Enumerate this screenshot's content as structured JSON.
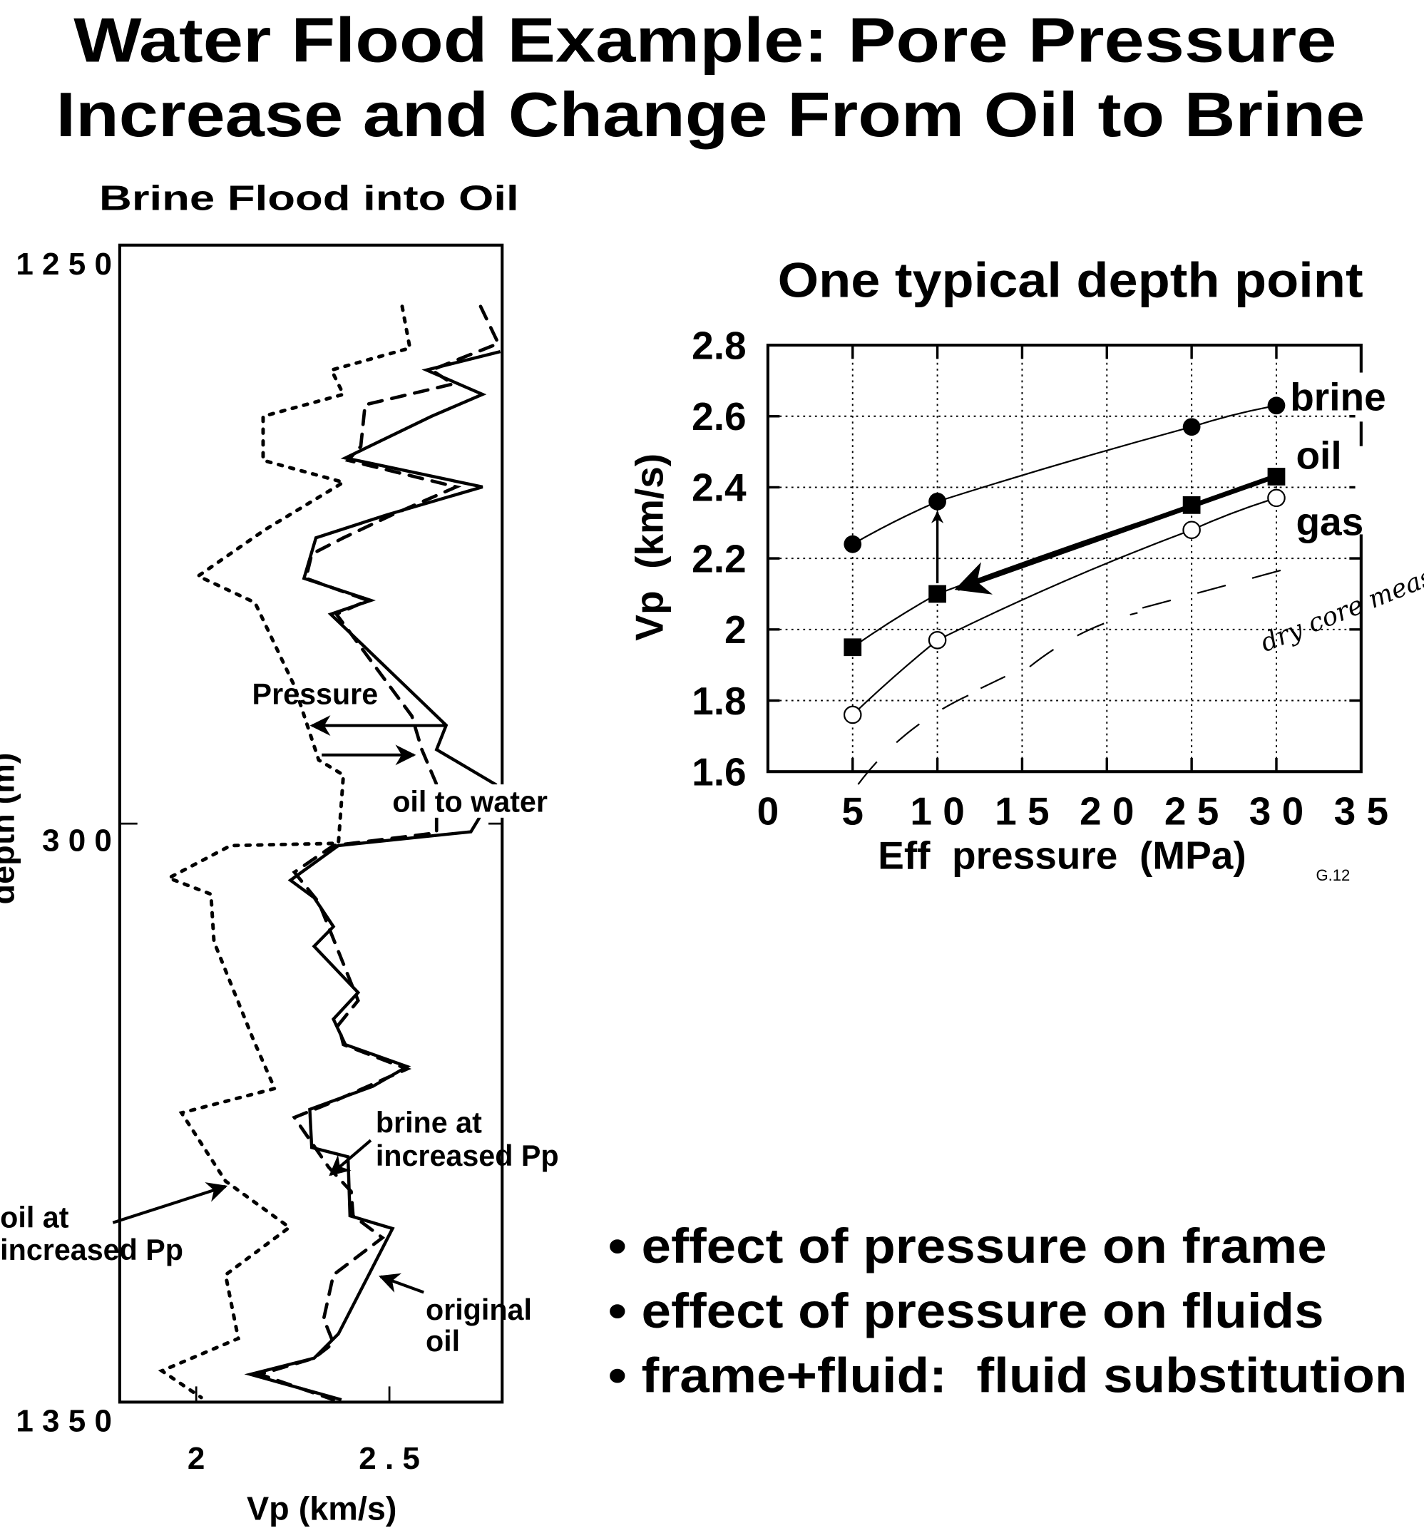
{
  "title": {
    "line1": "Water Flood Example:  Pore Pressure",
    "line2": "Increase and Change From Oil to Brine"
  },
  "left_panel": {
    "subtitle": "Brine Flood into Oil",
    "ylabel": "depth (m)",
    "xlabel": "Vp (km/s)",
    "annotations": {
      "pressure": "Pressure",
      "oil_to_water": "oil to water",
      "brine_1": "brine  at",
      "brine_2": "increased  Pp",
      "oil_1": "oil  at",
      "oil_2": "increased  Pp",
      "orig_1": "original",
      "orig_2": "oil"
    }
  },
  "right_panel": {
    "title": "One typical depth point",
    "figure_id": "G.12",
    "handwritten_note": "dry core measurement"
  },
  "bullets": [
    "• effect of pressure on frame",
    "• effect of pressure on fluids",
    "• frame+fluid:  fluid substitution"
  ],
  "chart_data": [
    {
      "type": "line",
      "title": "Brine Flood into Oil",
      "xlabel": "Vp (km/s)",
      "ylabel": "depth (m)",
      "xlim": [
        1.8,
        2.79
      ],
      "ylim": [
        1350,
        1250
      ],
      "x_ticks": [
        {
          "v": 2,
          "label": "2"
        },
        {
          "v": 2.5,
          "label": "2 . 5"
        }
      ],
      "y_ticks": [
        {
          "v": 1250,
          "label": "1 2 5 0"
        },
        {
          "v": 1300,
          "label": "3 0 0"
        },
        {
          "v": 1350,
          "label": "1 3 5 0"
        }
      ],
      "series": [
        {
          "name": "original oil",
          "style": "solid",
          "points": [
            [
              2.787,
              1259.2
            ],
            [
              2.596,
              1260.8
            ],
            [
              2.741,
              1262.9
            ],
            [
              2.609,
              1264.8
            ],
            [
              2.386,
              1268.4
            ],
            [
              2.741,
              1270.9
            ],
            [
              2.495,
              1273.3
            ],
            [
              2.31,
              1275.3
            ],
            [
              2.279,
              1278.8
            ],
            [
              2.452,
              1280.7
            ],
            [
              2.348,
              1281.9
            ],
            [
              2.647,
              1291.5
            ],
            [
              2.622,
              1293.6
            ],
            [
              2.774,
              1296.6
            ],
            [
              2.731,
              1299.6
            ],
            [
              2.711,
              1300.7
            ],
            [
              2.368,
              1301.9
            ],
            [
              2.244,
              1304.9
            ],
            [
              2.305,
              1306.4
            ],
            [
              2.355,
              1308.9
            ],
            [
              2.305,
              1310.6
            ],
            [
              2.419,
              1314.6
            ],
            [
              2.355,
              1316.9
            ],
            [
              2.386,
              1319.1
            ],
            [
              2.546,
              1321.0
            ],
            [
              2.457,
              1322.7
            ],
            [
              2.294,
              1324.7
            ],
            [
              2.299,
              1328.0
            ],
            [
              2.393,
              1328.8
            ],
            [
              2.398,
              1333.9
            ],
            [
              2.508,
              1335.0
            ],
            [
              2.368,
              1344.1
            ],
            [
              2.305,
              1346.2
            ],
            [
              2.14,
              1347.6
            ],
            [
              2.376,
              1349.8
            ]
          ]
        },
        {
          "name": "brine at increased Pp",
          "style": "dashed",
          "points": [
            [
              2.736,
              1255.3
            ],
            [
              2.782,
              1258.5
            ],
            [
              2.609,
              1260.8
            ],
            [
              2.665,
              1262.0
            ],
            [
              2.437,
              1263.8
            ],
            [
              2.426,
              1267.4
            ],
            [
              2.393,
              1268.6
            ],
            [
              2.673,
              1270.9
            ],
            [
              2.508,
              1273.3
            ],
            [
              2.381,
              1275.3
            ],
            [
              2.299,
              1276.7
            ],
            [
              2.284,
              1278.8
            ],
            [
              2.444,
              1280.7
            ],
            [
              2.363,
              1281.9
            ],
            [
              2.558,
              1290.7
            ],
            [
              2.584,
              1293.6
            ],
            [
              2.622,
              1296.6
            ],
            [
              2.622,
              1300.8
            ],
            [
              2.355,
              1301.9
            ],
            [
              2.254,
              1304.2
            ],
            [
              2.317,
              1306.8
            ],
            [
              2.419,
              1315.3
            ],
            [
              2.368,
              1317.4
            ],
            [
              2.381,
              1319.1
            ],
            [
              2.546,
              1321.2
            ],
            [
              2.343,
              1324.2
            ],
            [
              2.254,
              1325.4
            ],
            [
              2.343,
              1329.7
            ],
            [
              2.401,
              1331.8
            ],
            [
              2.406,
              1333.9
            ],
            [
              2.482,
              1335.8
            ],
            [
              2.355,
              1339.0
            ],
            [
              2.33,
              1342.8
            ],
            [
              2.355,
              1344.9
            ],
            [
              2.305,
              1346.2
            ],
            [
              2.165,
              1347.6
            ],
            [
              2.355,
              1349.8
            ]
          ]
        },
        {
          "name": "oil at increased Pp",
          "style": "dotted",
          "points": [
            [
              2.533,
              1255.3
            ],
            [
              2.553,
              1258.9
            ],
            [
              2.35,
              1260.8
            ],
            [
              2.381,
              1262.9
            ],
            [
              2.173,
              1264.8
            ],
            [
              2.173,
              1268.6
            ],
            [
              2.381,
              1270.5
            ],
            [
              2.178,
              1274.6
            ],
            [
              2.005,
              1278.6
            ],
            [
              2.152,
              1280.9
            ],
            [
              2.254,
              1288.1
            ],
            [
              2.317,
              1294.5
            ],
            [
              2.381,
              1295.8
            ],
            [
              2.368,
              1301.7
            ],
            [
              2.089,
              1301.9
            ],
            [
              1.929,
              1304.7
            ],
            [
              2.038,
              1306.1
            ],
            [
              2.046,
              1310.2
            ],
            [
              2.147,
              1318.6
            ],
            [
              2.203,
              1322.9
            ],
            [
              1.962,
              1325.0
            ],
            [
              2.076,
              1330.9
            ],
            [
              2.241,
              1334.9
            ],
            [
              2.076,
              1339.0
            ],
            [
              2.109,
              1344.5
            ],
            [
              1.911,
              1347.3
            ],
            [
              2.013,
              1349.6
            ]
          ]
        }
      ]
    },
    {
      "type": "line",
      "title": "One typical depth point",
      "xlabel": "Eff  pressure  (MPa)",
      "ylabel": "Vp  (km/s)",
      "xlim": [
        0,
        35
      ],
      "ylim": [
        1.6,
        2.8
      ],
      "grid": true,
      "x_ticks": [
        {
          "v": 0,
          "label": "0"
        },
        {
          "v": 5,
          "label": "5"
        },
        {
          "v": 10,
          "label": "1 0"
        },
        {
          "v": 15,
          "label": "1 5"
        },
        {
          "v": 20,
          "label": "2 0"
        },
        {
          "v": 25,
          "label": "2 5"
        },
        {
          "v": 30,
          "label": "3 0"
        },
        {
          "v": 35,
          "label": "3 5"
        }
      ],
      "y_ticks": [
        {
          "v": 1.6,
          "label": "1.6"
        },
        {
          "v": 1.8,
          "label": "1.8"
        },
        {
          "v": 2.0,
          "label": "2"
        },
        {
          "v": 2.2,
          "label": "2.2"
        },
        {
          "v": 2.4,
          "label": "2.4"
        },
        {
          "v": 2.6,
          "label": "2.6"
        },
        {
          "v": 2.8,
          "label": "2.8"
        }
      ],
      "series": [
        {
          "name": "brine",
          "marker": "filled-circle",
          "x": [
            5,
            10,
            25,
            30
          ],
          "y": [
            2.24,
            2.36,
            2.57,
            2.63
          ]
        },
        {
          "name": "oil",
          "marker": "filled-square",
          "x": [
            5,
            10,
            25,
            30
          ],
          "y": [
            1.95,
            2.1,
            2.35,
            2.43
          ]
        },
        {
          "name": "gas",
          "marker": "open-circle",
          "x": [
            5,
            10,
            25,
            30
          ],
          "y": [
            1.76,
            1.97,
            2.28,
            2.37
          ]
        }
      ]
    }
  ]
}
